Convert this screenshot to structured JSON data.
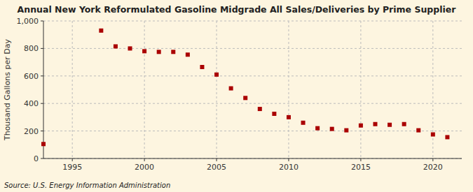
{
  "chart_data": {
    "type": "scatter",
    "title": "Annual New York Reformulated Gasoline Midgrade All Sales/Deliveries by Prime Supplier",
    "ylabel": "Thousand Gallons per Day",
    "source": "Source: U.S. Energy Information Administration",
    "x": [
      1993,
      1997,
      1998,
      1999,
      2000,
      2001,
      2002,
      2003,
      2004,
      2005,
      2006,
      2007,
      2008,
      2009,
      2010,
      2011,
      2012,
      2013,
      2014,
      2015,
      2016,
      2017,
      2018,
      2019,
      2020,
      2021
    ],
    "values": [
      105,
      930,
      815,
      800,
      780,
      775,
      775,
      755,
      665,
      610,
      510,
      440,
      360,
      325,
      300,
      260,
      220,
      215,
      205,
      240,
      250,
      245,
      250,
      205,
      175,
      155
    ],
    "color": "#aa0000",
    "marker": "square",
    "xlim": [
      1993.0,
      2022.0
    ],
    "xticks": [
      1995,
      2000,
      2005,
      2010,
      2015,
      2020
    ],
    "ylim": [
      0,
      1000
    ],
    "yticks": [
      0,
      200,
      400,
      600,
      800,
      {
        "value": 1000,
        "label": "1,000"
      }
    ],
    "grid": true
  }
}
